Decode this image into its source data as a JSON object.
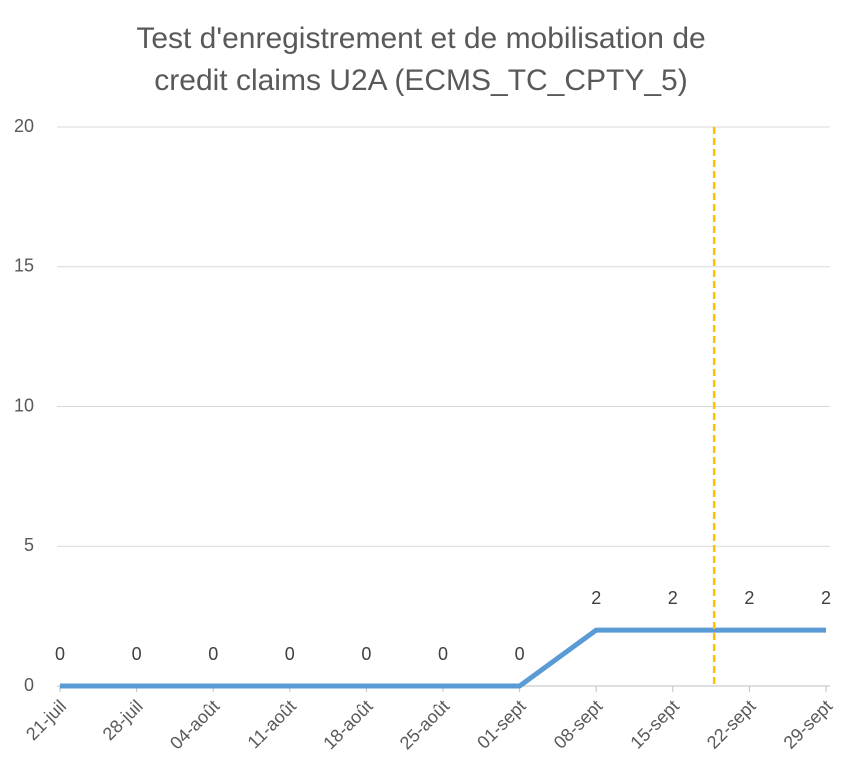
{
  "chart_data": {
    "type": "line",
    "title": [
      "Test d'enregistrement et de mobilisation de",
      "credit claims U2A (ECMS_TC_CPTY_5)"
    ],
    "categories": [
      "21-juil",
      "28-juil",
      "04-août",
      "11-août",
      "18-août",
      "25-août",
      "01-sept",
      "08-sept",
      "15-sept",
      "22-sept",
      "29-sept"
    ],
    "series": [
      {
        "name": "ECMS_TC_CPTY_5",
        "color": "#5b9bd5",
        "values": [
          0,
          0,
          0,
          0,
          0,
          0,
          0,
          2,
          2,
          2,
          2
        ]
      }
    ],
    "data_labels": true,
    "ylim": [
      0,
      20
    ],
    "yticks": [
      0,
      5,
      10,
      15,
      20
    ],
    "grid": true,
    "reference_line": {
      "category_position": 8.54,
      "color": "#ffc000",
      "style": "dashed"
    }
  }
}
